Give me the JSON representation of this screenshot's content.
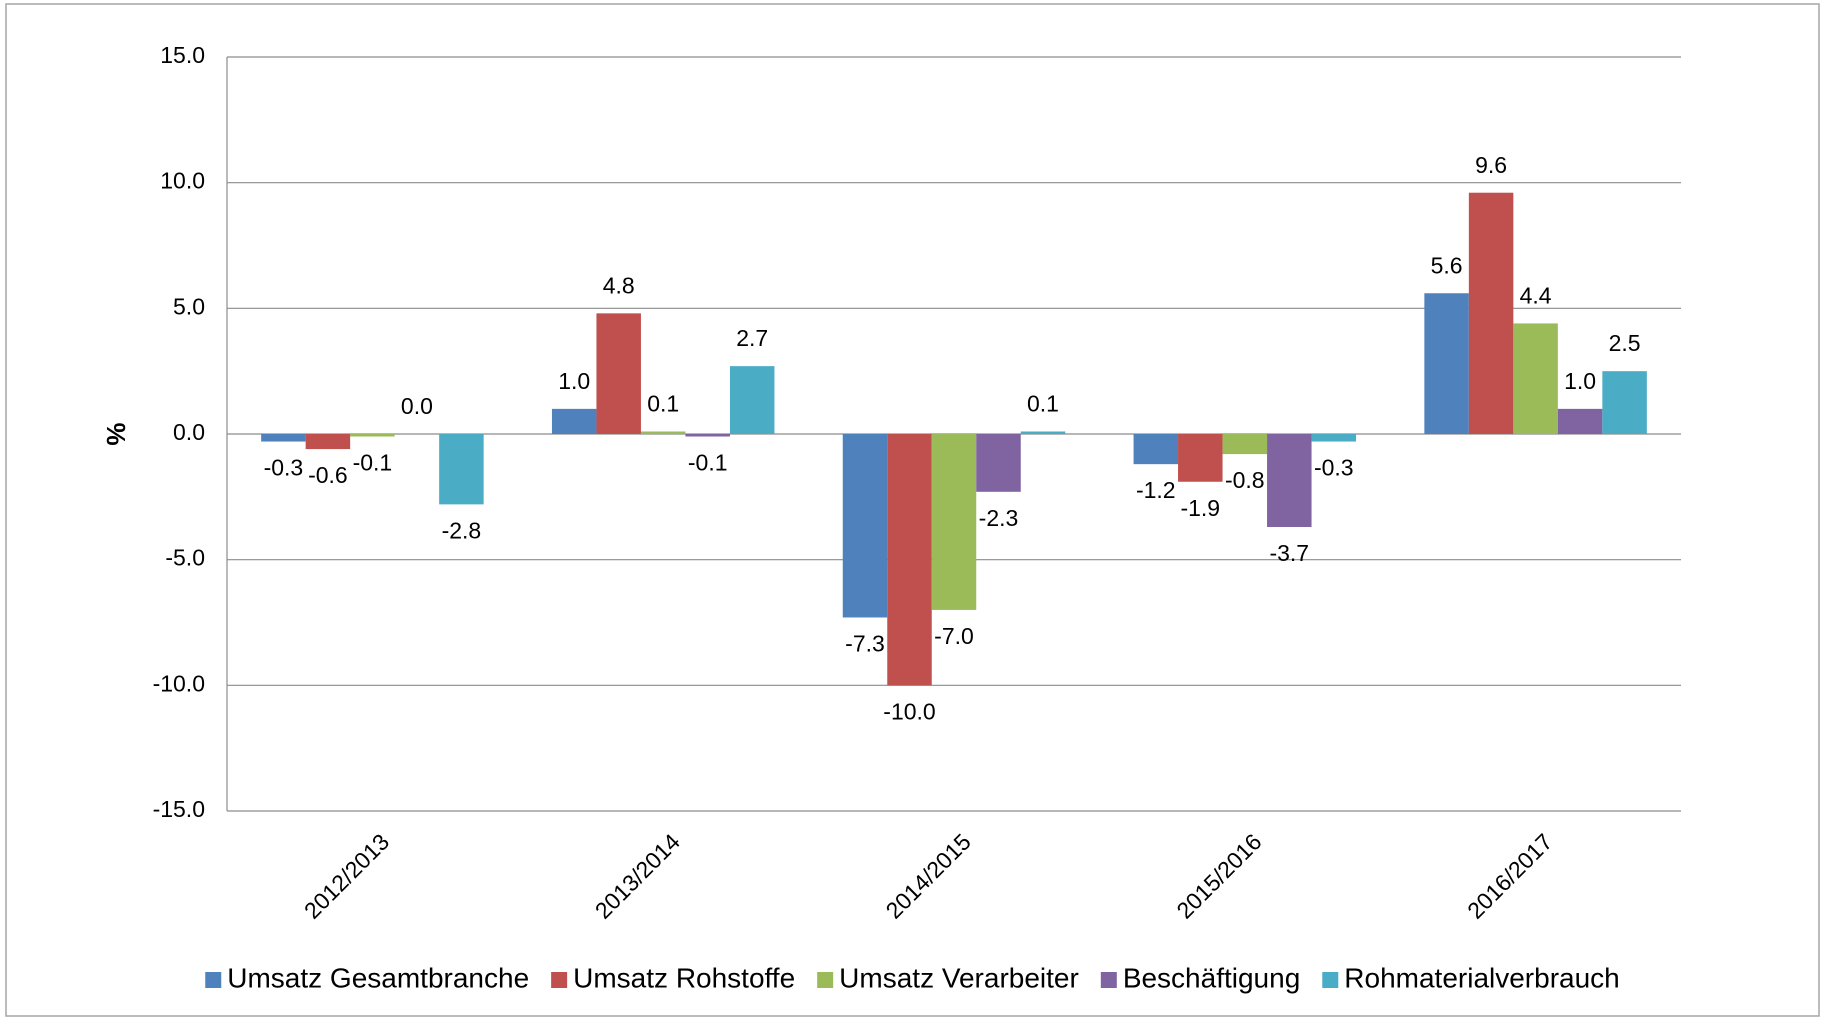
{
  "chart_data": {
    "type": "bar",
    "ylabel": "%",
    "categories": [
      "2012/2013",
      "2013/2014",
      "2014/2015",
      "2015/2016",
      "2016/2017"
    ],
    "series": [
      {
        "name": "Umsatz Gesamtbranche",
        "color": "#4f81bd",
        "values": [
          -0.3,
          1.0,
          -7.3,
          -1.2,
          5.6
        ],
        "value_labels": [
          "-0.3",
          "1.0",
          "-7.3",
          "-1.2",
          "5.6"
        ]
      },
      {
        "name": "Umsatz Rohstoffe",
        "color": "#c0504d",
        "values": [
          -0.6,
          4.8,
          -10.0,
          -1.9,
          9.6
        ],
        "value_labels": [
          "-0.6",
          "4.8",
          "-10.0",
          "-1.9",
          "9.6"
        ]
      },
      {
        "name": "Umsatz Verarbeiter",
        "color": "#9bbb59",
        "values": [
          -0.1,
          0.1,
          -7.0,
          -0.8,
          4.4
        ],
        "value_labels": [
          "-0.1",
          "0.1",
          "-7.0",
          "-0.8",
          "4.4"
        ]
      },
      {
        "name": "Beschäftigung",
        "color": "#8064a2",
        "values": [
          0.0,
          -0.1,
          -2.3,
          -3.7,
          1.0
        ],
        "value_labels": [
          "0.0",
          "-0.1",
          "-2.3",
          "-3.7",
          "1.0"
        ]
      },
      {
        "name": "Rohmaterialverbrauch",
        "color": "#4bacc6",
        "values": [
          -2.8,
          2.7,
          0.1,
          -0.3,
          2.5
        ],
        "value_labels": [
          "-2.8",
          "2.7",
          "0.1",
          "-0.3",
          "2.5"
        ]
      }
    ],
    "ylim": [
      -15,
      15
    ],
    "yticks": [
      {
        "value": -15,
        "label": "-15.0"
      },
      {
        "value": -10,
        "label": "-10.0"
      },
      {
        "value": -5,
        "label": "-5.0"
      },
      {
        "value": 0,
        "label": "0.0"
      },
      {
        "value": 5,
        "label": "5.0"
      },
      {
        "value": 10,
        "label": "10.0"
      },
      {
        "value": 15,
        "label": "15.0"
      }
    ],
    "grid": true,
    "legend": "bottom"
  }
}
